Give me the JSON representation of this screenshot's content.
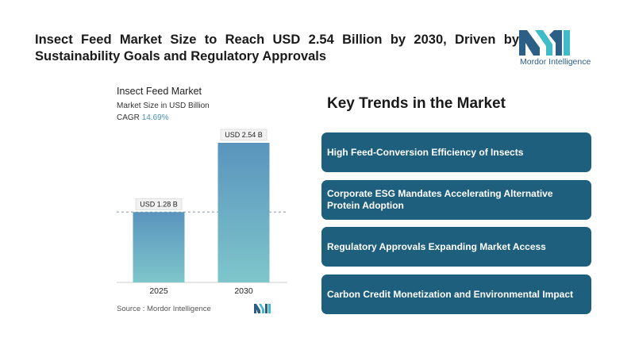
{
  "header": {
    "headline": "Insect Feed Market Size to Reach USD 2.54 Billion by 2030, Driven by Sustainability Goals and Regulatory Approvals",
    "logo_text": "Mordor Intelligence"
  },
  "chart": {
    "title": "Insect Feed Market",
    "subtitle": "Market Size in USD Billion",
    "cagr_label": "CAGR",
    "cagr_value": "14.69%"
  },
  "chart_data": {
    "type": "bar",
    "title": "Insect Feed Market",
    "subtitle": "Market Size in USD Billion",
    "categories": [
      "2025",
      "2030"
    ],
    "values": [
      1.28,
      2.54
    ],
    "data_labels": [
      "USD 1.28 B",
      "USD 2.54 B"
    ],
    "ylim": [
      0,
      2.54
    ],
    "grid": false,
    "reference_line": "dashed line at 2025 value",
    "colors": {
      "bar_top": "#5a94bd",
      "bar_bottom": "#7ec6cb"
    }
  },
  "source": "Source :  Mordor Intelligence",
  "trends": {
    "title": "Key Trends in the Market",
    "items": [
      "High Feed-Conversion Efficiency of Insects",
      "Corporate ESG Mandates Accelerating Alternative Protein Adoption",
      "Regulatory Approvals Expanding Market Access",
      "Carbon Credit Monetization and Environmental Impact"
    ]
  },
  "colors": {
    "accent": "#1e5f7e",
    "brand_teal": "#3fbcc8",
    "brand_blue": "#2b5f86"
  }
}
